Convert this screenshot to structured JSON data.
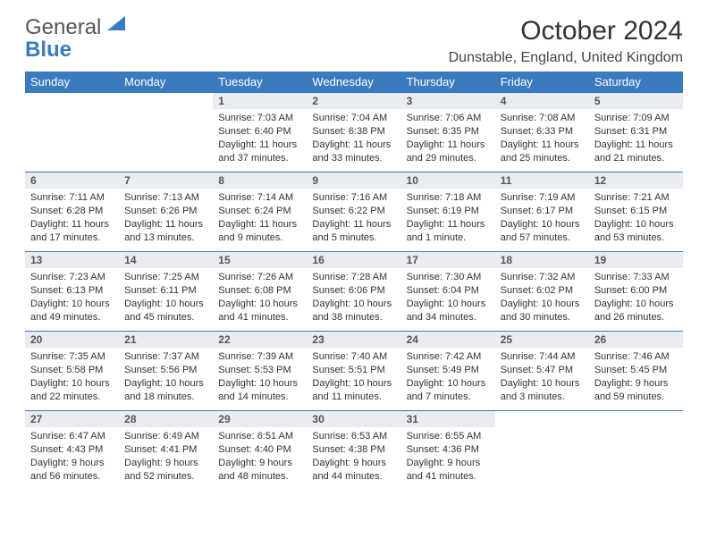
{
  "logo": {
    "line1": "General",
    "line2": "Blue"
  },
  "title": "October 2024",
  "location": "Dunstable, England, United Kingdom",
  "colors": {
    "header_bg": "#3a7bbf",
    "header_fg": "#ffffff",
    "daynum_bg": "#e9edf1",
    "row_border": "#3a7bbf",
    "text": "#333333",
    "background": "#ffffff"
  },
  "typography": {
    "title_fontsize_pt": 22,
    "location_fontsize_pt": 12,
    "header_fontsize_pt": 10,
    "body_fontsize_pt": 8.5
  },
  "weekdays": [
    "Sunday",
    "Monday",
    "Tuesday",
    "Wednesday",
    "Thursday",
    "Friday",
    "Saturday"
  ],
  "weeks": [
    [
      null,
      null,
      {
        "n": "1",
        "sunrise": "Sunrise: 7:03 AM",
        "sunset": "Sunset: 6:40 PM",
        "daylight": "Daylight: 11 hours and 37 minutes."
      },
      {
        "n": "2",
        "sunrise": "Sunrise: 7:04 AM",
        "sunset": "Sunset: 6:38 PM",
        "daylight": "Daylight: 11 hours and 33 minutes."
      },
      {
        "n": "3",
        "sunrise": "Sunrise: 7:06 AM",
        "sunset": "Sunset: 6:35 PM",
        "daylight": "Daylight: 11 hours and 29 minutes."
      },
      {
        "n": "4",
        "sunrise": "Sunrise: 7:08 AM",
        "sunset": "Sunset: 6:33 PM",
        "daylight": "Daylight: 11 hours and 25 minutes."
      },
      {
        "n": "5",
        "sunrise": "Sunrise: 7:09 AM",
        "sunset": "Sunset: 6:31 PM",
        "daylight": "Daylight: 11 hours and 21 minutes."
      }
    ],
    [
      {
        "n": "6",
        "sunrise": "Sunrise: 7:11 AM",
        "sunset": "Sunset: 6:28 PM",
        "daylight": "Daylight: 11 hours and 17 minutes."
      },
      {
        "n": "7",
        "sunrise": "Sunrise: 7:13 AM",
        "sunset": "Sunset: 6:26 PM",
        "daylight": "Daylight: 11 hours and 13 minutes."
      },
      {
        "n": "8",
        "sunrise": "Sunrise: 7:14 AM",
        "sunset": "Sunset: 6:24 PM",
        "daylight": "Daylight: 11 hours and 9 minutes."
      },
      {
        "n": "9",
        "sunrise": "Sunrise: 7:16 AM",
        "sunset": "Sunset: 6:22 PM",
        "daylight": "Daylight: 11 hours and 5 minutes."
      },
      {
        "n": "10",
        "sunrise": "Sunrise: 7:18 AM",
        "sunset": "Sunset: 6:19 PM",
        "daylight": "Daylight: 11 hours and 1 minute."
      },
      {
        "n": "11",
        "sunrise": "Sunrise: 7:19 AM",
        "sunset": "Sunset: 6:17 PM",
        "daylight": "Daylight: 10 hours and 57 minutes."
      },
      {
        "n": "12",
        "sunrise": "Sunrise: 7:21 AM",
        "sunset": "Sunset: 6:15 PM",
        "daylight": "Daylight: 10 hours and 53 minutes."
      }
    ],
    [
      {
        "n": "13",
        "sunrise": "Sunrise: 7:23 AM",
        "sunset": "Sunset: 6:13 PM",
        "daylight": "Daylight: 10 hours and 49 minutes."
      },
      {
        "n": "14",
        "sunrise": "Sunrise: 7:25 AM",
        "sunset": "Sunset: 6:11 PM",
        "daylight": "Daylight: 10 hours and 45 minutes."
      },
      {
        "n": "15",
        "sunrise": "Sunrise: 7:26 AM",
        "sunset": "Sunset: 6:08 PM",
        "daylight": "Daylight: 10 hours and 41 minutes."
      },
      {
        "n": "16",
        "sunrise": "Sunrise: 7:28 AM",
        "sunset": "Sunset: 6:06 PM",
        "daylight": "Daylight: 10 hours and 38 minutes."
      },
      {
        "n": "17",
        "sunrise": "Sunrise: 7:30 AM",
        "sunset": "Sunset: 6:04 PM",
        "daylight": "Daylight: 10 hours and 34 minutes."
      },
      {
        "n": "18",
        "sunrise": "Sunrise: 7:32 AM",
        "sunset": "Sunset: 6:02 PM",
        "daylight": "Daylight: 10 hours and 30 minutes."
      },
      {
        "n": "19",
        "sunrise": "Sunrise: 7:33 AM",
        "sunset": "Sunset: 6:00 PM",
        "daylight": "Daylight: 10 hours and 26 minutes."
      }
    ],
    [
      {
        "n": "20",
        "sunrise": "Sunrise: 7:35 AM",
        "sunset": "Sunset: 5:58 PM",
        "daylight": "Daylight: 10 hours and 22 minutes."
      },
      {
        "n": "21",
        "sunrise": "Sunrise: 7:37 AM",
        "sunset": "Sunset: 5:56 PM",
        "daylight": "Daylight: 10 hours and 18 minutes."
      },
      {
        "n": "22",
        "sunrise": "Sunrise: 7:39 AM",
        "sunset": "Sunset: 5:53 PM",
        "daylight": "Daylight: 10 hours and 14 minutes."
      },
      {
        "n": "23",
        "sunrise": "Sunrise: 7:40 AM",
        "sunset": "Sunset: 5:51 PM",
        "daylight": "Daylight: 10 hours and 11 minutes."
      },
      {
        "n": "24",
        "sunrise": "Sunrise: 7:42 AM",
        "sunset": "Sunset: 5:49 PM",
        "daylight": "Daylight: 10 hours and 7 minutes."
      },
      {
        "n": "25",
        "sunrise": "Sunrise: 7:44 AM",
        "sunset": "Sunset: 5:47 PM",
        "daylight": "Daylight: 10 hours and 3 minutes."
      },
      {
        "n": "26",
        "sunrise": "Sunrise: 7:46 AM",
        "sunset": "Sunset: 5:45 PM",
        "daylight": "Daylight: 9 hours and 59 minutes."
      }
    ],
    [
      {
        "n": "27",
        "sunrise": "Sunrise: 6:47 AM",
        "sunset": "Sunset: 4:43 PM",
        "daylight": "Daylight: 9 hours and 56 minutes."
      },
      {
        "n": "28",
        "sunrise": "Sunrise: 6:49 AM",
        "sunset": "Sunset: 4:41 PM",
        "daylight": "Daylight: 9 hours and 52 minutes."
      },
      {
        "n": "29",
        "sunrise": "Sunrise: 6:51 AM",
        "sunset": "Sunset: 4:40 PM",
        "daylight": "Daylight: 9 hours and 48 minutes."
      },
      {
        "n": "30",
        "sunrise": "Sunrise: 6:53 AM",
        "sunset": "Sunset: 4:38 PM",
        "daylight": "Daylight: 9 hours and 44 minutes."
      },
      {
        "n": "31",
        "sunrise": "Sunrise: 6:55 AM",
        "sunset": "Sunset: 4:36 PM",
        "daylight": "Daylight: 9 hours and 41 minutes."
      },
      null,
      null
    ]
  ]
}
